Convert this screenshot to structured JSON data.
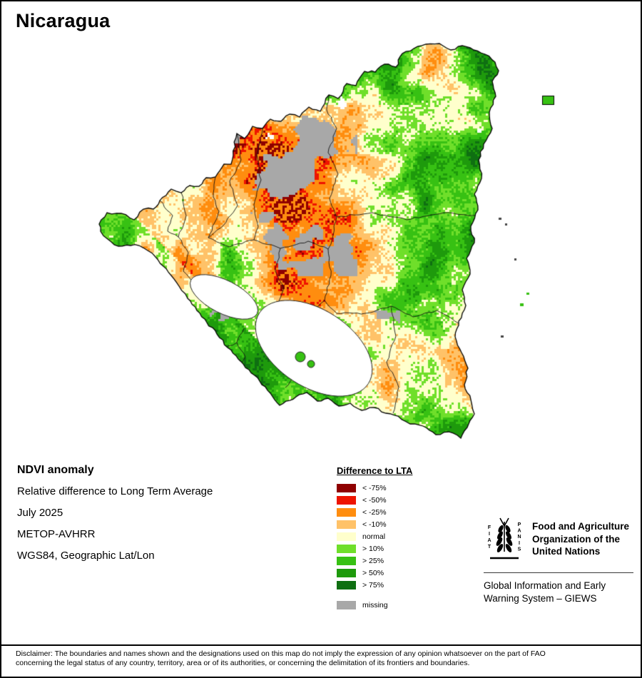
{
  "title": "Nicaragua",
  "info": {
    "heading": "NDVI anomaly",
    "subtitle": "Relative difference to Long Term Average",
    "period": "July 2025",
    "sensor": "METOP-AVHRR",
    "projection": "WGS84, Geographic Lat/Lon"
  },
  "legend": {
    "title": "Difference to LTA",
    "items": [
      {
        "label": "< -75%",
        "color": "#8f0000"
      },
      {
        "label": "< -50%",
        "color": "#ee1400"
      },
      {
        "label": "< -25%",
        "color": "#ff8d0f"
      },
      {
        "label": "< -10%",
        "color": "#ffc268"
      },
      {
        "label": "normal",
        "color": "#ffffcc"
      },
      {
        "label": "> 10%",
        "color": "#6fdf2a"
      },
      {
        "label": "> 25%",
        "color": "#37c113"
      },
      {
        "label": "> 50%",
        "color": "#1e9a0c"
      },
      {
        "label": "> 75%",
        "color": "#0f6f12"
      },
      {
        "label": "missing",
        "color": "#a8a8a8"
      }
    ]
  },
  "fao": {
    "logo_motto": "FIAT PANIS",
    "org_lines": [
      "Food and Agriculture",
      "Organization of the",
      "United Nations"
    ],
    "giews_lines": [
      "Global Information and Early",
      "Warning System – GIEWS"
    ]
  },
  "disclaimer_lines": [
    "Disclaimer: The boundaries and names shown and the designations used on this map do not imply the expression of any opinion whatsoever on the part of FAO",
    "concerning the legal status of any country, territory, area or of its authorities, or concerning the delimitation of its frontiers and boundaries."
  ]
}
